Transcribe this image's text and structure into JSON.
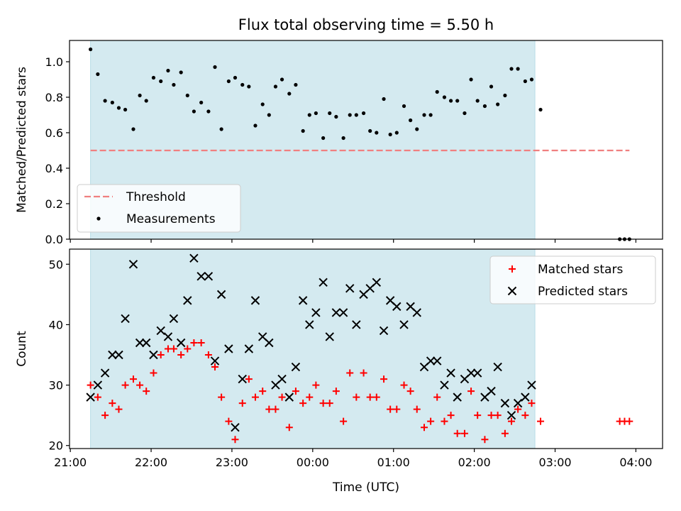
{
  "chart_data": {
    "title": "Flux total observing time = 5.50 h",
    "xlabel": "Time (UTC)",
    "x_unit": "hours since 00:00 UTC (negative = previous day)",
    "xlim": [
      -3.01,
      4.33
    ],
    "xticks": [
      -3,
      -2,
      -1,
      0,
      1,
      2,
      3,
      4
    ],
    "xtick_labels": [
      "21:00",
      "22:00",
      "23:00",
      "00:00",
      "01:00",
      "02:00",
      "03:00",
      "04:00"
    ],
    "shaded_span": {
      "x0": -2.75,
      "x1": 2.75,
      "color": "#d4eaf0"
    },
    "panels": [
      {
        "name": "ratio",
        "type": "scatter",
        "ylabel": "Matched/Predicted stars",
        "ylim": [
          0,
          1.12
        ],
        "yticks": [
          0,
          0.2,
          0.4,
          0.6,
          0.8,
          1.0
        ],
        "ytick_labels": [
          "0.0",
          "0.2",
          "0.4",
          "0.6",
          "0.8",
          "1.0"
        ],
        "legend": {
          "position": "lower-left",
          "entries": [
            "Threshold",
            "Measurements"
          ]
        },
        "threshold": {
          "name": "Threshold",
          "y": 0.5,
          "x0": -2.75,
          "x1": 3.92,
          "color": "#f08080"
        },
        "series": [
          {
            "name": "Measurements",
            "marker": "dot",
            "color": "#000000",
            "x": [
              -2.75,
              -2.66,
              -2.57,
              -2.48,
              -2.4,
              -2.32,
              -2.22,
              -2.14,
              -2.06,
              -1.97,
              -1.88,
              -1.79,
              -1.72,
              -1.63,
              -1.55,
              -1.47,
              -1.38,
              -1.29,
              -1.21,
              -1.13,
              -1.04,
              -0.96,
              -0.87,
              -0.79,
              -0.71,
              -0.62,
              -0.54,
              -0.46,
              -0.38,
              -0.29,
              -0.21,
              -0.12,
              -0.04,
              0.04,
              0.13,
              0.21,
              0.29,
              0.38,
              0.46,
              0.54,
              0.63,
              0.71,
              0.79,
              0.88,
              0.96,
              1.04,
              1.13,
              1.21,
              1.29,
              1.38,
              1.46,
              1.54,
              1.63,
              1.71,
              1.79,
              1.88,
              1.96,
              2.04,
              2.13,
              2.21,
              2.29,
              2.38,
              2.46,
              2.54,
              2.63,
              2.71,
              2.82,
              3.8,
              3.86,
              3.92
            ],
            "y": [
              1.07,
              0.93,
              0.78,
              0.77,
              0.74,
              0.73,
              0.62,
              0.81,
              0.78,
              0.91,
              0.89,
              0.95,
              0.87,
              0.94,
              0.81,
              0.72,
              0.77,
              0.72,
              0.97,
              0.62,
              0.89,
              0.91,
              0.87,
              0.86,
              0.64,
              0.76,
              0.7,
              0.86,
              0.9,
              0.82,
              0.87,
              0.61,
              0.7,
              0.71,
              0.57,
              0.71,
              0.69,
              0.57,
              0.7,
              0.7,
              0.71,
              0.61,
              0.6,
              0.79,
              0.59,
              0.6,
              0.75,
              0.67,
              0.62,
              0.7,
              0.7,
              0.83,
              0.8,
              0.78,
              0.78,
              0.71,
              0.9,
              0.78,
              0.75,
              0.86,
              0.76,
              0.81,
              0.96,
              0.96,
              0.89,
              0.9,
              0.73,
              0.0,
              0.0,
              0.0
            ]
          }
        ]
      },
      {
        "name": "count",
        "type": "scatter",
        "ylabel": "Count",
        "ylim": [
          19.5,
          52.5
        ],
        "yticks": [
          20,
          30,
          40,
          50
        ],
        "ytick_labels": [
          "20",
          "30",
          "40",
          "50"
        ],
        "legend": {
          "position": "upper-right",
          "entries": [
            "Matched stars",
            "Predicted stars"
          ]
        },
        "series": [
          {
            "name": "Matched stars",
            "marker": "plus",
            "color": "#ff0000",
            "x": [
              -2.75,
              -2.66,
              -2.57,
              -2.48,
              -2.4,
              -2.32,
              -2.22,
              -2.14,
              -2.06,
              -1.97,
              -1.88,
              -1.79,
              -1.72,
              -1.63,
              -1.55,
              -1.47,
              -1.38,
              -1.29,
              -1.21,
              -1.13,
              -1.04,
              -0.96,
              -0.87,
              -0.79,
              -0.71,
              -0.62,
              -0.54,
              -0.46,
              -0.38,
              -0.29,
              -0.21,
              -0.12,
              -0.04,
              0.04,
              0.13,
              0.21,
              0.29,
              0.38,
              0.46,
              0.54,
              0.63,
              0.71,
              0.79,
              0.88,
              0.96,
              1.04,
              1.13,
              1.21,
              1.29,
              1.38,
              1.46,
              1.54,
              1.63,
              1.71,
              1.79,
              1.88,
              1.96,
              2.04,
              2.13,
              2.21,
              2.29,
              2.38,
              2.46,
              2.54,
              2.63,
              2.71,
              2.82,
              3.8,
              3.86,
              3.92
            ],
            "y": [
              30,
              28,
              25,
              27,
              26,
              30,
              31,
              30,
              29,
              32,
              35,
              36,
              36,
              35,
              36,
              37,
              37,
              35,
              33,
              28,
              24,
              21,
              27,
              31,
              28,
              29,
              26,
              26,
              28,
              23,
              29,
              27,
              28,
              30,
              27,
              27,
              29,
              24,
              32,
              28,
              32,
              28,
              28,
              31,
              26,
              26,
              30,
              29,
              26,
              23,
              24,
              28,
              24,
              25,
              22,
              22,
              29,
              25,
              21,
              25,
              25,
              22,
              24,
              26,
              25,
              27,
              24,
              24,
              24,
              24
            ]
          },
          {
            "name": "Predicted stars",
            "marker": "x",
            "color": "#000000",
            "x": [
              -2.75,
              -2.66,
              -2.57,
              -2.48,
              -2.4,
              -2.32,
              -2.22,
              -2.14,
              -2.06,
              -1.97,
              -1.88,
              -1.79,
              -1.72,
              -1.63,
              -1.55,
              -1.47,
              -1.38,
              -1.29,
              -1.21,
              -1.13,
              -1.04,
              -0.96,
              -0.87,
              -0.79,
              -0.71,
              -0.62,
              -0.54,
              -0.46,
              -0.38,
              -0.29,
              -0.21,
              -0.12,
              -0.04,
              0.04,
              0.13,
              0.21,
              0.29,
              0.38,
              0.46,
              0.54,
              0.63,
              0.71,
              0.79,
              0.88,
              0.96,
              1.04,
              1.13,
              1.21,
              1.29,
              1.38,
              1.46,
              1.54,
              1.63,
              1.71,
              1.79,
              1.88,
              1.96,
              2.04,
              2.13,
              2.21,
              2.29,
              2.38,
              2.46,
              2.54,
              2.63,
              2.71
            ],
            "y": [
              28,
              30,
              32,
              35,
              35,
              41,
              50,
              37,
              37,
              35,
              39,
              38,
              41,
              37,
              44,
              51,
              48,
              48,
              34,
              45,
              36,
              23,
              31,
              36,
              44,
              38,
              37,
              30,
              31,
              28,
              33,
              44,
              40,
              42,
              47,
              38,
              42,
              42,
              46,
              40,
              45,
              46,
              47,
              39,
              44,
              43,
              40,
              43,
              42,
              33,
              34,
              34,
              30,
              32,
              28,
              31,
              32,
              32,
              28,
              29,
              33,
              27,
              25,
              27,
              28,
              30
            ]
          }
        ]
      }
    ]
  }
}
